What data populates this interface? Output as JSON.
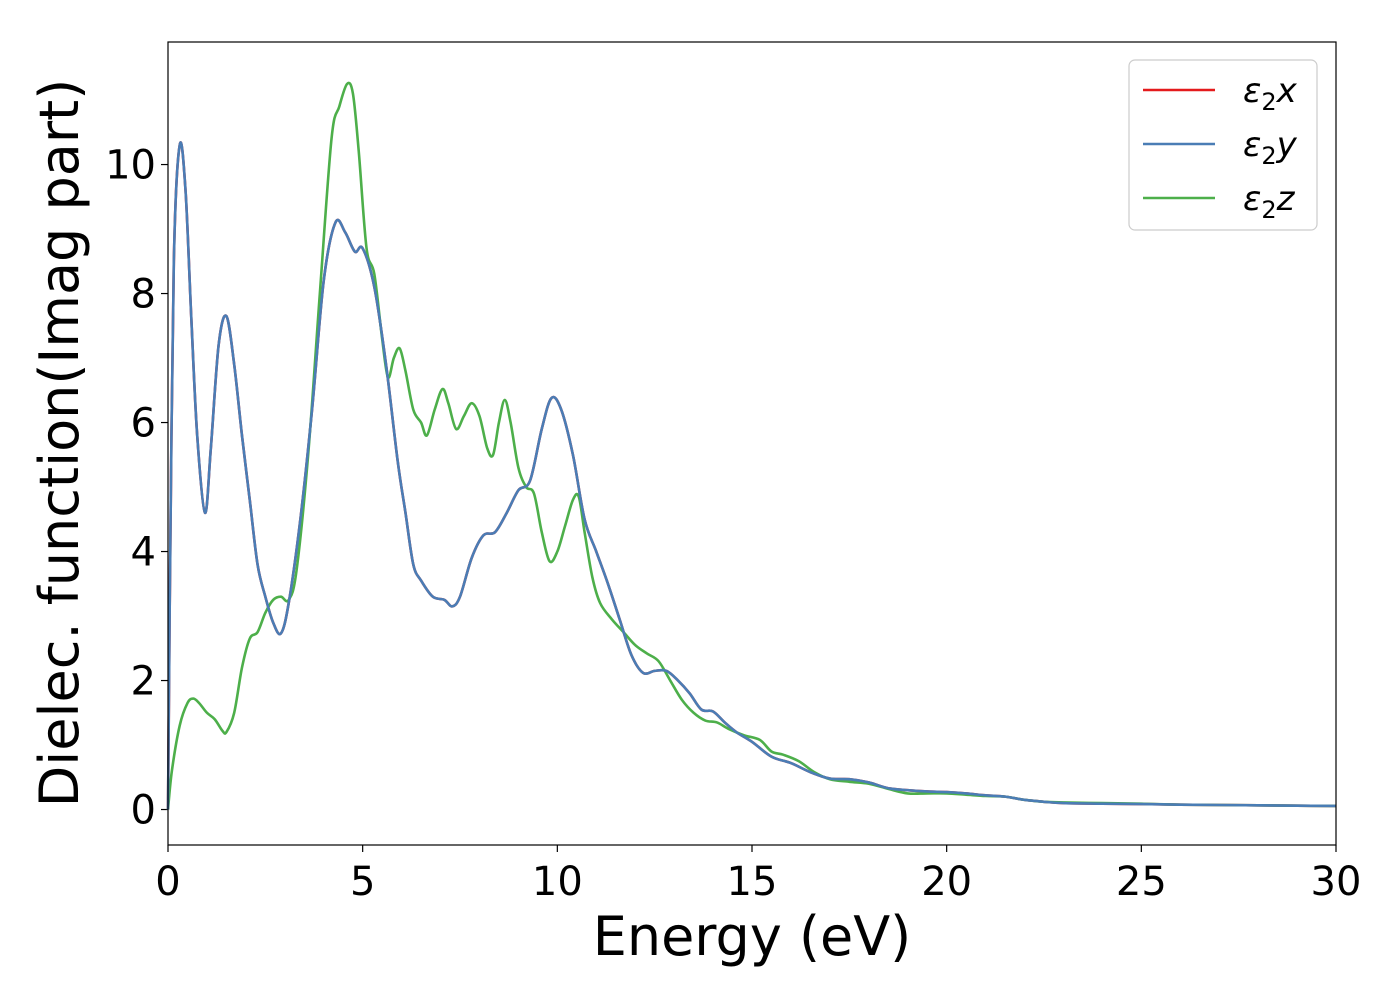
{
  "chart_data": {
    "type": "line",
    "xlabel": "Energy (eV)",
    "ylabel": "Dielec. function(Imag part)",
    "xlim": [
      0,
      30
    ],
    "ylim": [
      -0.55,
      11.9
    ],
    "xticks": [
      0,
      5,
      10,
      15,
      20,
      25,
      30
    ],
    "yticks": [
      0,
      2,
      4,
      6,
      8,
      10
    ],
    "grid": false,
    "legend_position": "top-right",
    "series": [
      {
        "name": "ε2x",
        "legend_base": "ε",
        "legend_sub": "2",
        "legend_var": "x",
        "color": "#e41a1c",
        "points": [
          [
            0,
            0
          ],
          [
            0.05,
            3.5
          ],
          [
            0.15,
            8.5
          ],
          [
            0.3,
            10.3
          ],
          [
            0.45,
            9.6
          ],
          [
            0.6,
            7.6
          ],
          [
            0.75,
            5.8
          ],
          [
            0.95,
            4.6
          ],
          [
            1.1,
            5.6
          ],
          [
            1.3,
            7.2
          ],
          [
            1.5,
            7.65
          ],
          [
            1.7,
            6.9
          ],
          [
            1.9,
            5.8
          ],
          [
            2.1,
            4.8
          ],
          [
            2.3,
            3.8
          ],
          [
            2.5,
            3.3
          ],
          [
            2.7,
            2.9
          ],
          [
            2.9,
            2.73
          ],
          [
            3.1,
            3.2
          ],
          [
            3.4,
            4.5
          ],
          [
            3.7,
            6.2
          ],
          [
            4.0,
            8.2
          ],
          [
            4.3,
            9.1
          ],
          [
            4.55,
            8.95
          ],
          [
            4.8,
            8.65
          ],
          [
            5.0,
            8.7
          ],
          [
            5.3,
            8.1
          ],
          [
            5.6,
            6.9
          ],
          [
            5.9,
            5.4
          ],
          [
            6.1,
            4.6
          ],
          [
            6.3,
            3.8
          ],
          [
            6.5,
            3.55
          ],
          [
            6.8,
            3.3
          ],
          [
            7.1,
            3.25
          ],
          [
            7.3,
            3.15
          ],
          [
            7.5,
            3.3
          ],
          [
            7.8,
            3.9
          ],
          [
            8.1,
            4.25
          ],
          [
            8.4,
            4.3
          ],
          [
            8.7,
            4.6
          ],
          [
            9.0,
            4.95
          ],
          [
            9.3,
            5.1
          ],
          [
            9.6,
            5.9
          ],
          [
            9.85,
            6.38
          ],
          [
            10.1,
            6.2
          ],
          [
            10.4,
            5.5
          ],
          [
            10.7,
            4.5
          ],
          [
            11.0,
            4.0
          ],
          [
            11.3,
            3.5
          ],
          [
            11.6,
            2.95
          ],
          [
            11.9,
            2.4
          ],
          [
            12.2,
            2.12
          ],
          [
            12.5,
            2.15
          ],
          [
            12.8,
            2.15
          ],
          [
            13.1,
            2.0
          ],
          [
            13.4,
            1.8
          ],
          [
            13.7,
            1.55
          ],
          [
            14.0,
            1.52
          ],
          [
            14.3,
            1.35
          ],
          [
            14.6,
            1.2
          ],
          [
            15.0,
            1.05
          ],
          [
            15.5,
            0.82
          ],
          [
            16.0,
            0.72
          ],
          [
            16.5,
            0.58
          ],
          [
            17.0,
            0.48
          ],
          [
            17.5,
            0.47
          ],
          [
            18.0,
            0.42
          ],
          [
            18.5,
            0.33
          ],
          [
            19.0,
            0.3
          ],
          [
            19.5,
            0.28
          ],
          [
            20.0,
            0.27
          ],
          [
            20.5,
            0.25
          ],
          [
            21.0,
            0.22
          ],
          [
            21.5,
            0.2
          ],
          [
            22.0,
            0.15
          ],
          [
            22.5,
            0.12
          ],
          [
            23.0,
            0.1
          ],
          [
            24.0,
            0.09
          ],
          [
            25.0,
            0.085
          ],
          [
            26.0,
            0.075
          ],
          [
            27.0,
            0.07
          ],
          [
            28.0,
            0.065
          ],
          [
            29.0,
            0.06
          ],
          [
            30.0,
            0.055
          ]
        ]
      },
      {
        "name": "ε2y",
        "legend_base": "ε",
        "legend_sub": "2",
        "legend_var": "y",
        "color": "#4a7db5",
        "points": [
          [
            0,
            0
          ],
          [
            0.05,
            3.5
          ],
          [
            0.15,
            8.5
          ],
          [
            0.3,
            10.3
          ],
          [
            0.45,
            9.6
          ],
          [
            0.6,
            7.6
          ],
          [
            0.75,
            5.8
          ],
          [
            0.95,
            4.6
          ],
          [
            1.1,
            5.6
          ],
          [
            1.3,
            7.2
          ],
          [
            1.5,
            7.65
          ],
          [
            1.7,
            6.9
          ],
          [
            1.9,
            5.8
          ],
          [
            2.1,
            4.8
          ],
          [
            2.3,
            3.8
          ],
          [
            2.5,
            3.3
          ],
          [
            2.7,
            2.9
          ],
          [
            2.9,
            2.73
          ],
          [
            3.1,
            3.2
          ],
          [
            3.4,
            4.5
          ],
          [
            3.7,
            6.2
          ],
          [
            4.0,
            8.2
          ],
          [
            4.3,
            9.1
          ],
          [
            4.55,
            8.95
          ],
          [
            4.8,
            8.65
          ],
          [
            5.0,
            8.7
          ],
          [
            5.3,
            8.1
          ],
          [
            5.6,
            6.9
          ],
          [
            5.9,
            5.4
          ],
          [
            6.1,
            4.6
          ],
          [
            6.3,
            3.8
          ],
          [
            6.5,
            3.55
          ],
          [
            6.8,
            3.3
          ],
          [
            7.1,
            3.25
          ],
          [
            7.3,
            3.15
          ],
          [
            7.5,
            3.3
          ],
          [
            7.8,
            3.9
          ],
          [
            8.1,
            4.25
          ],
          [
            8.4,
            4.3
          ],
          [
            8.7,
            4.6
          ],
          [
            9.0,
            4.95
          ],
          [
            9.3,
            5.1
          ],
          [
            9.6,
            5.9
          ],
          [
            9.85,
            6.38
          ],
          [
            10.1,
            6.2
          ],
          [
            10.4,
            5.5
          ],
          [
            10.7,
            4.5
          ],
          [
            11.0,
            4.0
          ],
          [
            11.3,
            3.5
          ],
          [
            11.6,
            2.95
          ],
          [
            11.9,
            2.4
          ],
          [
            12.2,
            2.12
          ],
          [
            12.5,
            2.15
          ],
          [
            12.8,
            2.15
          ],
          [
            13.1,
            2.0
          ],
          [
            13.4,
            1.8
          ],
          [
            13.7,
            1.55
          ],
          [
            14.0,
            1.52
          ],
          [
            14.3,
            1.35
          ],
          [
            14.6,
            1.2
          ],
          [
            15.0,
            1.05
          ],
          [
            15.5,
            0.82
          ],
          [
            16.0,
            0.72
          ],
          [
            16.5,
            0.58
          ],
          [
            17.0,
            0.48
          ],
          [
            17.5,
            0.47
          ],
          [
            18.0,
            0.42
          ],
          [
            18.5,
            0.33
          ],
          [
            19.0,
            0.3
          ],
          [
            19.5,
            0.28
          ],
          [
            20.0,
            0.27
          ],
          [
            20.5,
            0.25
          ],
          [
            21.0,
            0.22
          ],
          [
            21.5,
            0.2
          ],
          [
            22.0,
            0.15
          ],
          [
            22.5,
            0.12
          ],
          [
            23.0,
            0.1
          ],
          [
            24.0,
            0.09
          ],
          [
            25.0,
            0.085
          ],
          [
            26.0,
            0.075
          ],
          [
            27.0,
            0.07
          ],
          [
            28.0,
            0.065
          ],
          [
            29.0,
            0.06
          ],
          [
            30.0,
            0.055
          ]
        ]
      },
      {
        "name": "ε2z",
        "legend_base": "ε",
        "legend_sub": "2",
        "legend_var": "z",
        "color": "#4daf4a",
        "points": [
          [
            0,
            0
          ],
          [
            0.1,
            0.6
          ],
          [
            0.3,
            1.3
          ],
          [
            0.5,
            1.65
          ],
          [
            0.65,
            1.72
          ],
          [
            0.8,
            1.65
          ],
          [
            1.0,
            1.5
          ],
          [
            1.2,
            1.4
          ],
          [
            1.4,
            1.22
          ],
          [
            1.5,
            1.2
          ],
          [
            1.7,
            1.5
          ],
          [
            1.9,
            2.2
          ],
          [
            2.1,
            2.65
          ],
          [
            2.3,
            2.75
          ],
          [
            2.5,
            3.05
          ],
          [
            2.7,
            3.25
          ],
          [
            2.9,
            3.3
          ],
          [
            3.1,
            3.25
          ],
          [
            3.3,
            3.7
          ],
          [
            3.6,
            5.5
          ],
          [
            3.9,
            8.0
          ],
          [
            4.2,
            10.4
          ],
          [
            4.4,
            10.9
          ],
          [
            4.6,
            11.25
          ],
          [
            4.75,
            11.1
          ],
          [
            4.9,
            10.2
          ],
          [
            5.1,
            8.7
          ],
          [
            5.3,
            8.3
          ],
          [
            5.5,
            7.3
          ],
          [
            5.65,
            6.7
          ],
          [
            5.8,
            7.0
          ],
          [
            5.95,
            7.15
          ],
          [
            6.1,
            6.8
          ],
          [
            6.3,
            6.2
          ],
          [
            6.5,
            6.0
          ],
          [
            6.65,
            5.8
          ],
          [
            6.85,
            6.2
          ],
          [
            7.05,
            6.52
          ],
          [
            7.2,
            6.3
          ],
          [
            7.4,
            5.9
          ],
          [
            7.6,
            6.1
          ],
          [
            7.8,
            6.3
          ],
          [
            8.0,
            6.1
          ],
          [
            8.2,
            5.6
          ],
          [
            8.35,
            5.5
          ],
          [
            8.5,
            6.0
          ],
          [
            8.65,
            6.35
          ],
          [
            8.8,
            6.0
          ],
          [
            9.0,
            5.3
          ],
          [
            9.2,
            5.0
          ],
          [
            9.4,
            4.9
          ],
          [
            9.6,
            4.3
          ],
          [
            9.8,
            3.85
          ],
          [
            10.0,
            4.0
          ],
          [
            10.2,
            4.4
          ],
          [
            10.4,
            4.8
          ],
          [
            10.55,
            4.85
          ],
          [
            10.7,
            4.3
          ],
          [
            10.9,
            3.6
          ],
          [
            11.1,
            3.2
          ],
          [
            11.4,
            2.95
          ],
          [
            11.7,
            2.75
          ],
          [
            12.0,
            2.55
          ],
          [
            12.3,
            2.42
          ],
          [
            12.6,
            2.3
          ],
          [
            12.9,
            2.0
          ],
          [
            13.2,
            1.7
          ],
          [
            13.5,
            1.5
          ],
          [
            13.8,
            1.38
          ],
          [
            14.1,
            1.35
          ],
          [
            14.4,
            1.25
          ],
          [
            14.8,
            1.15
          ],
          [
            15.2,
            1.08
          ],
          [
            15.5,
            0.9
          ],
          [
            15.8,
            0.85
          ],
          [
            16.2,
            0.75
          ],
          [
            16.6,
            0.58
          ],
          [
            17.0,
            0.47
          ],
          [
            17.5,
            0.43
          ],
          [
            18.0,
            0.4
          ],
          [
            18.5,
            0.32
          ],
          [
            19.0,
            0.25
          ],
          [
            19.5,
            0.25
          ],
          [
            20.0,
            0.25
          ],
          [
            20.5,
            0.23
          ],
          [
            21.0,
            0.21
          ],
          [
            21.5,
            0.2
          ],
          [
            22.0,
            0.15
          ],
          [
            22.5,
            0.12
          ],
          [
            23.0,
            0.11
          ],
          [
            24.0,
            0.1
          ],
          [
            25.0,
            0.09
          ],
          [
            26.0,
            0.075
          ],
          [
            27.0,
            0.07
          ],
          [
            28.0,
            0.065
          ],
          [
            29.0,
            0.06
          ],
          [
            30.0,
            0.055
          ]
        ]
      }
    ]
  }
}
